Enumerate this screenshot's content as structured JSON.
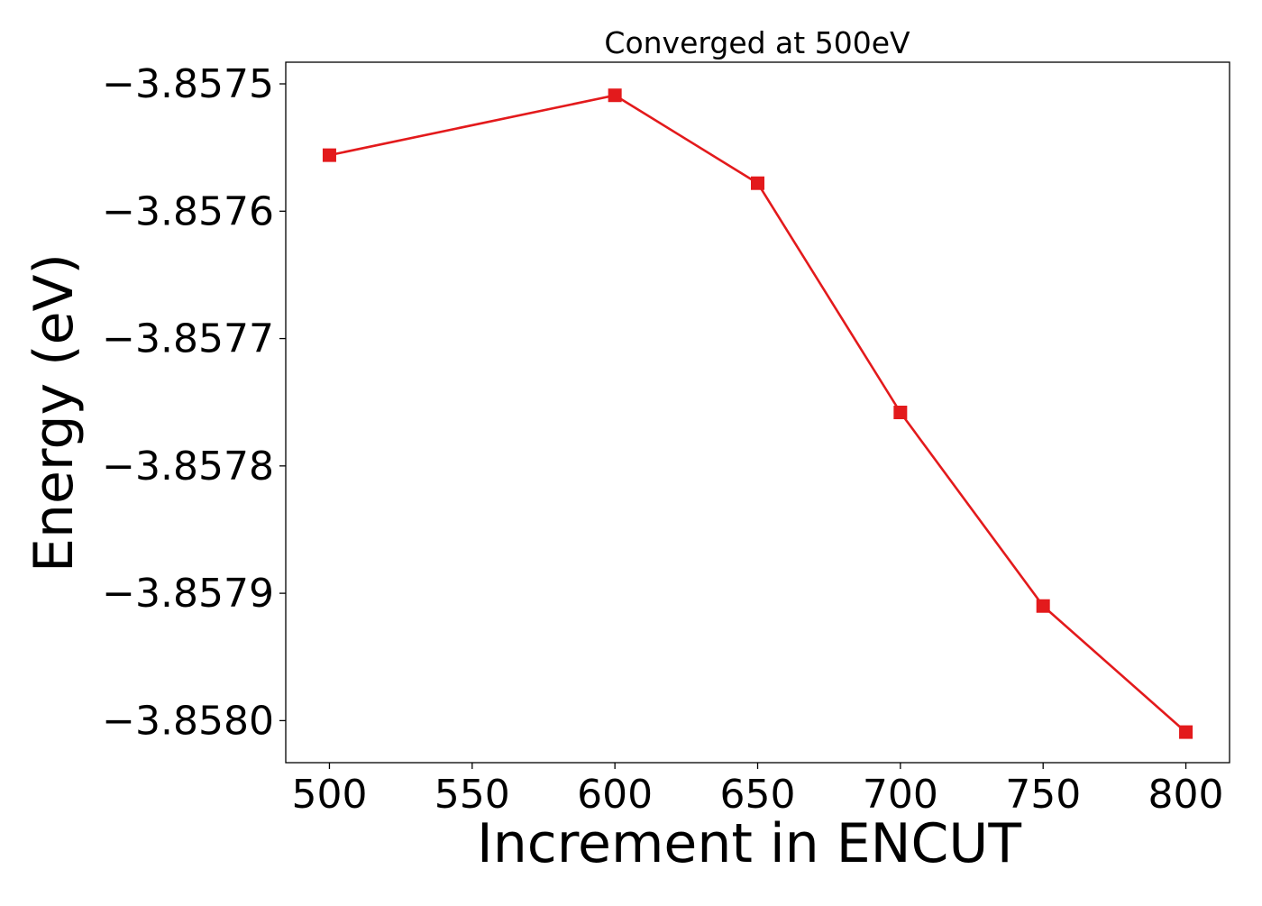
{
  "chart_data": {
    "type": "line",
    "title": "Converged at 500eV",
    "xlabel": "Increment in ENCUT",
    "ylabel": "Energy (eV)",
    "x": [
      500,
      600,
      650,
      700,
      750,
      800
    ],
    "series": [
      {
        "values": [
          -3.857556,
          -3.857509,
          -3.857578,
          -3.857758,
          -3.85791,
          -3.858009
        ],
        "color": "#e31a1c",
        "marker": "square"
      }
    ],
    "xlim": [
      484.7,
      815.3
    ],
    "ylim": [
      -3.858033,
      -3.857483
    ],
    "xticks": [
      500,
      550,
      600,
      650,
      700,
      750,
      800
    ],
    "xtick_labels": [
      "500",
      "550",
      "600",
      "650",
      "700",
      "750",
      "800"
    ],
    "yticks": [
      -3.8575,
      -3.8576,
      -3.8577,
      -3.8578,
      -3.8579,
      -3.858
    ],
    "ytick_labels": [
      "−3.8575",
      "−3.8576",
      "−3.8577",
      "−3.8578",
      "−3.8579",
      "−3.8580"
    ],
    "grid": false,
    "legend": "none"
  }
}
